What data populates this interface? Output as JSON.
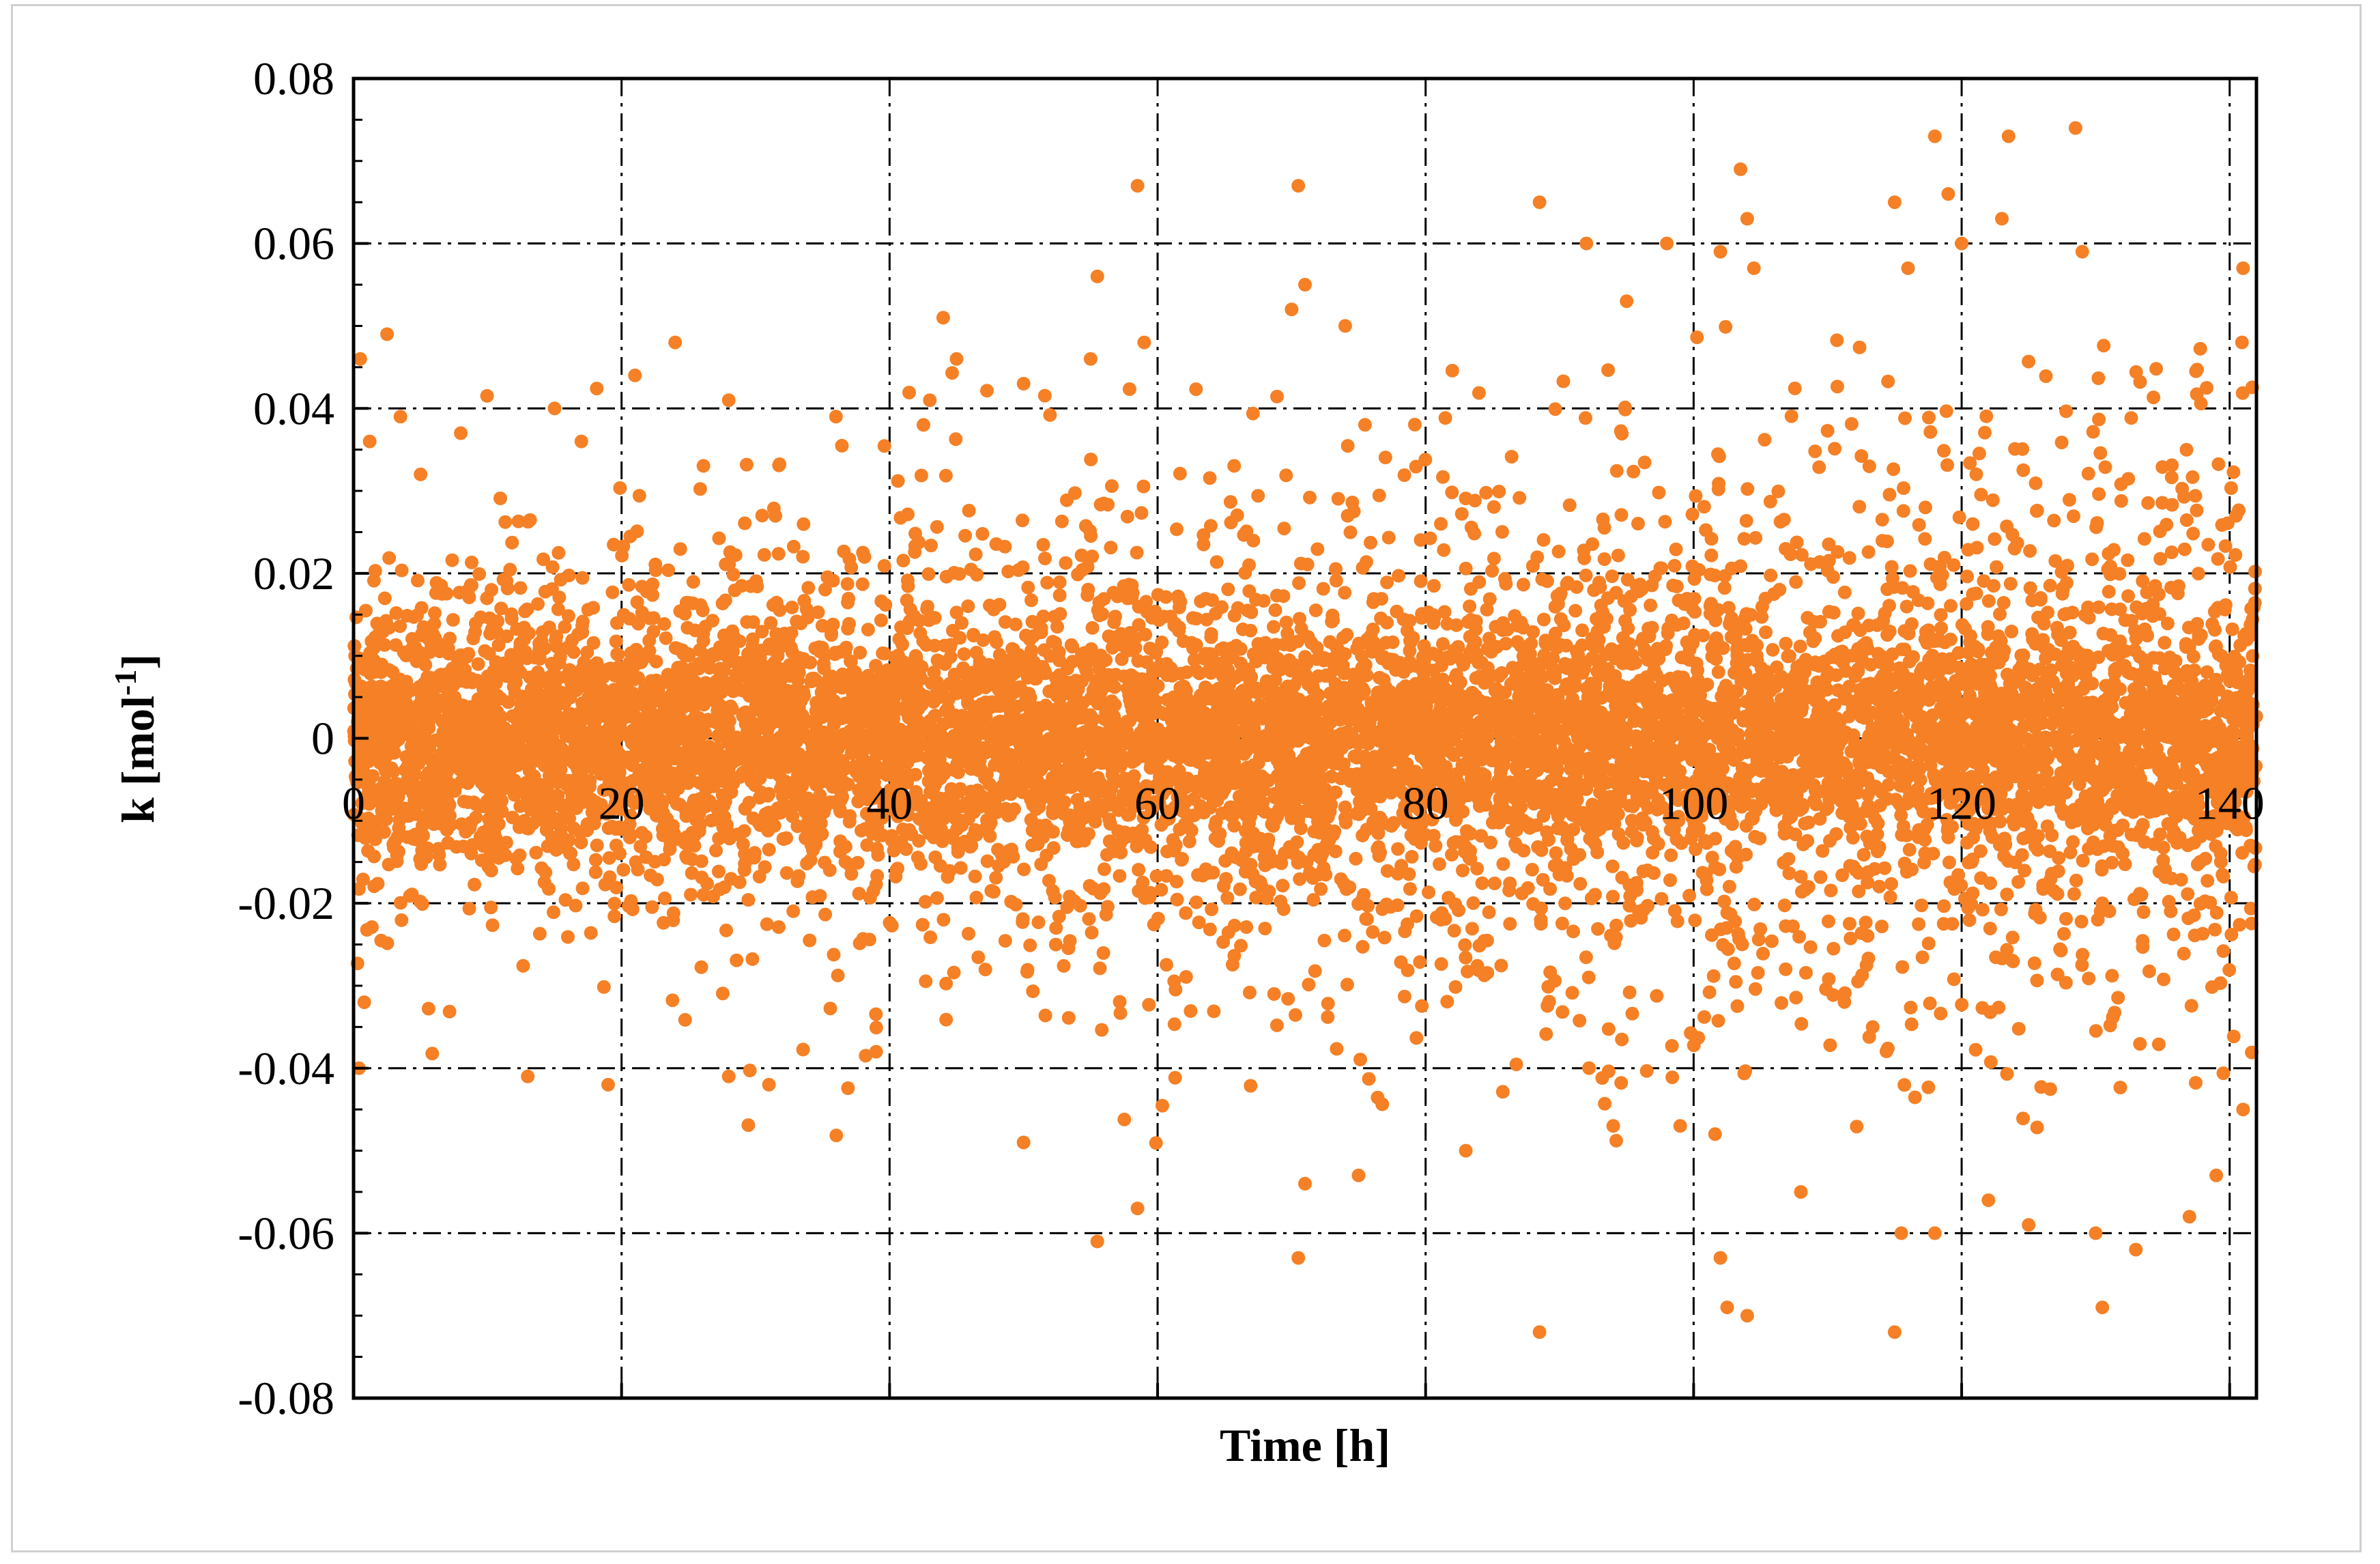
{
  "chart_data": {
    "type": "scatter",
    "title": "",
    "xlabel": "Time [h]",
    "ylabel_main": "k [mol",
    "ylabel_sup": "-1",
    "ylabel_end": "]",
    "xlim": [
      0,
      142
    ],
    "ylim": [
      -0.08,
      0.08
    ],
    "x_ticks": [
      0,
      20,
      40,
      60,
      80,
      100,
      120,
      140
    ],
    "x_tick_labels": [
      "0",
      "20",
      "40",
      "60",
      "80",
      "100",
      "120",
      "140"
    ],
    "y_ticks": [
      0.08,
      0.06,
      0.04,
      0.02,
      0,
      -0.02,
      -0.04,
      -0.06,
      -0.08
    ],
    "y_tick_labels": [
      "0.08",
      "0.06",
      "0.04",
      "0.02",
      "0",
      "-0.02",
      "-0.04",
      "-0.06",
      "-0.08"
    ],
    "grid": true,
    "legend": "none",
    "marker_color": "#F58025",
    "series": [
      {
        "outliers": [
          [
            0.5,
            0.046
          ],
          [
            1.2,
            0.036
          ],
          [
            2.5,
            0.049
          ],
          [
            3.5,
            0.039
          ],
          [
            0.4,
            -0.04
          ],
          [
            0.8,
            -0.032
          ],
          [
            5,
            0.032
          ],
          [
            8,
            0.037
          ],
          [
            15,
            0.04
          ],
          [
            17,
            0.036
          ],
          [
            21,
            0.044
          ],
          [
            24,
            0.048
          ],
          [
            28,
            0.041
          ],
          [
            36,
            0.039
          ],
          [
            43,
            0.041
          ],
          [
            44,
            0.051
          ],
          [
            45,
            0.046
          ],
          [
            50,
            0.043
          ],
          [
            55,
            0.046
          ],
          [
            55.5,
            0.056
          ],
          [
            58.5,
            0.067
          ],
          [
            59,
            0.048
          ],
          [
            70.5,
            0.067
          ],
          [
            71,
            0.055
          ],
          [
            70,
            0.052
          ],
          [
            74,
            0.05
          ],
          [
            88.5,
            0.065
          ],
          [
            92,
            0.06
          ],
          [
            95,
            0.053
          ],
          [
            98,
            0.06
          ],
          [
            102,
            0.059
          ],
          [
            103.5,
            0.069
          ],
          [
            104,
            0.063
          ],
          [
            104.5,
            0.057
          ],
          [
            115,
            0.065
          ],
          [
            116,
            0.057
          ],
          [
            118,
            0.073
          ],
          [
            119,
            0.066
          ],
          [
            120,
            0.06
          ],
          [
            123,
            0.063
          ],
          [
            123.5,
            0.073
          ],
          [
            129,
            0.059
          ],
          [
            128.5,
            0.074
          ],
          [
            141,
            0.057
          ],
          [
            13,
            -0.041
          ],
          [
            19,
            -0.042
          ],
          [
            28,
            -0.041
          ],
          [
            31,
            -0.042
          ],
          [
            39,
            -0.038
          ],
          [
            50,
            -0.049
          ],
          [
            55.5,
            -0.061
          ],
          [
            58.5,
            -0.057
          ],
          [
            70.5,
            -0.063
          ],
          [
            71,
            -0.054
          ],
          [
            75,
            -0.053
          ],
          [
            83,
            -0.05
          ],
          [
            88.5,
            -0.072
          ],
          [
            94,
            -0.047
          ],
          [
            99,
            -0.047
          ],
          [
            102,
            -0.063
          ],
          [
            102.5,
            -0.069
          ],
          [
            104,
            -0.07
          ],
          [
            108,
            -0.055
          ],
          [
            115,
            -0.072
          ],
          [
            115.5,
            -0.06
          ],
          [
            118,
            -0.06
          ],
          [
            122,
            -0.056
          ],
          [
            125,
            -0.059
          ],
          [
            130,
            -0.06
          ],
          [
            130.5,
            -0.069
          ],
          [
            133,
            -0.062
          ],
          [
            137,
            -0.058
          ],
          [
            139,
            -0.053
          ],
          [
            141,
            -0.045
          ]
        ],
        "dense_band": {
          "description_x": [
            0,
            142
          ],
          "core_half_width": 0.012,
          "outer_half_width_by_x": [
            [
              0,
              0.024
            ],
            [
              20,
              0.025
            ],
            [
              40,
              0.03
            ],
            [
              60,
              0.034
            ],
            [
              80,
              0.036
            ],
            [
              100,
              0.04
            ],
            [
              120,
              0.042
            ],
            [
              142,
              0.045
            ]
          ],
          "approx_point_count": 9000
        }
      }
    ]
  }
}
